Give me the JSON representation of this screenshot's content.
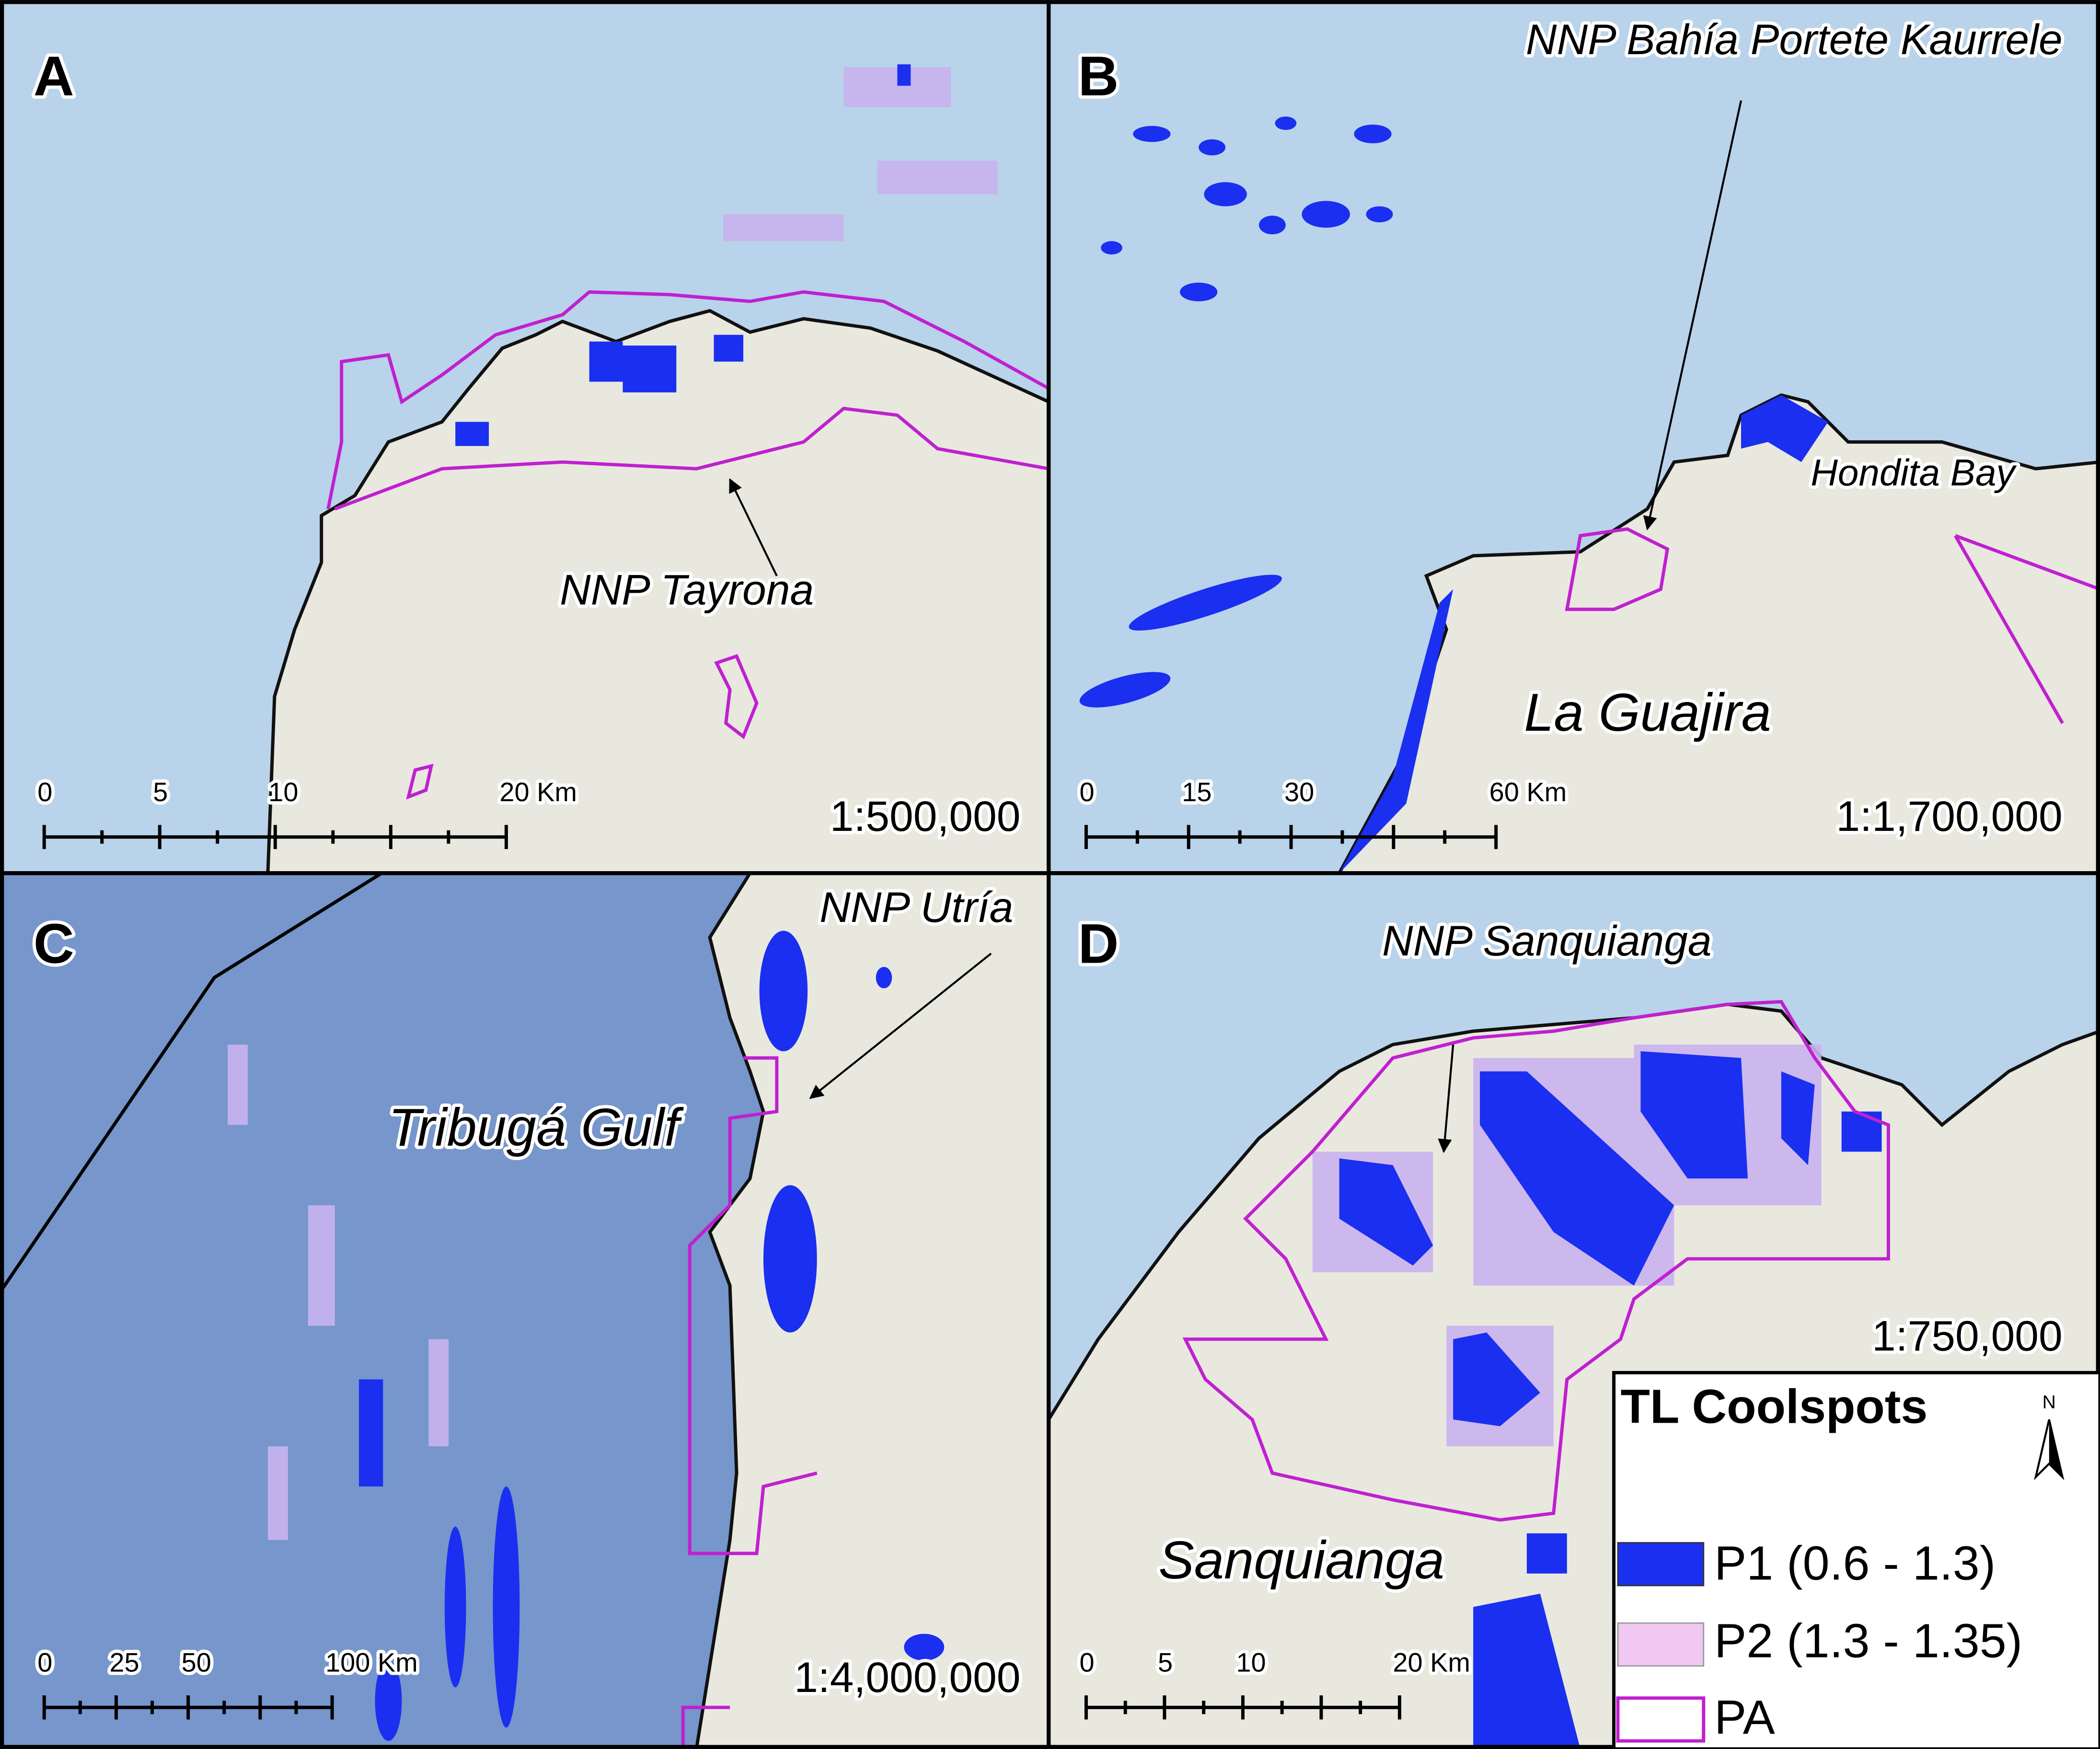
{
  "panels": [
    {
      "letter": "A",
      "labels": [
        "NNP Tayrona"
      ],
      "scale_bar": [
        "0",
        "5",
        "10",
        "20 Km"
      ],
      "scale": "1:500,000"
    },
    {
      "letter": "B",
      "labels": [
        "NNP Bahía Portete Kaurrele",
        "Hondita Bay",
        "La Guajira"
      ],
      "scale_bar": [
        "0",
        "15",
        "30",
        "60 Km"
      ],
      "scale": "1:1,700,000"
    },
    {
      "letter": "C",
      "labels": [
        "NNP Utría",
        "Tribugá Gulf"
      ],
      "scale_bar": [
        "0",
        "25",
        "50",
        "100 Km"
      ],
      "scale": "1:4,000,000"
    },
    {
      "letter": "D",
      "labels": [
        "NNP Sanquianga",
        "Sanquianga"
      ],
      "scale_bar": [
        "0",
        "5",
        "10",
        "20 Km"
      ],
      "scale": "1:750,000"
    }
  ],
  "legend": {
    "title": "TL Coolspots",
    "north": "N",
    "items": [
      "P1 (0.6 - 1.3)",
      "P2 (1.3 - 1.35)",
      "PA"
    ]
  }
}
